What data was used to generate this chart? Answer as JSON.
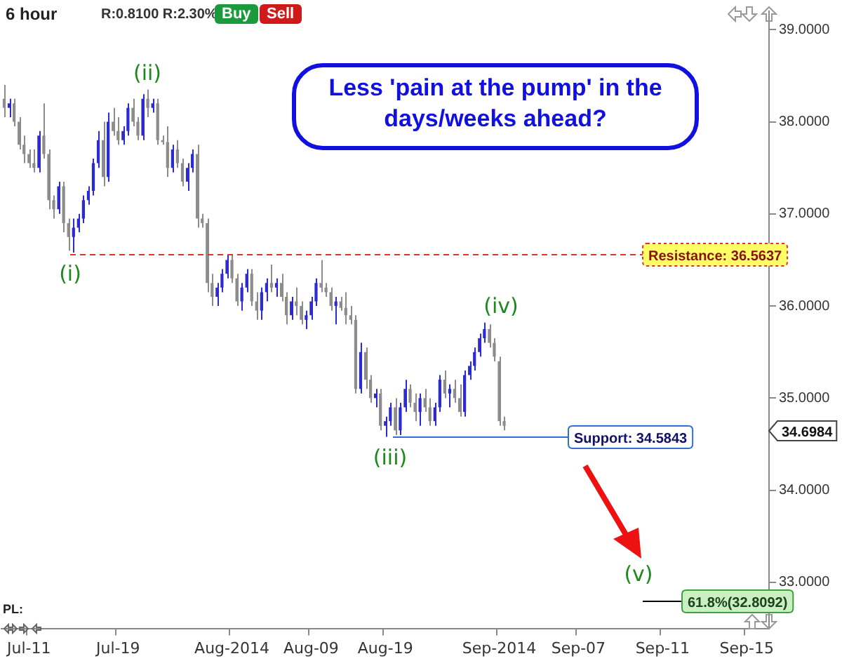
{
  "chart_data": {
    "type": "candlestick",
    "title": "6 hour",
    "categories": [
      null,
      null,
      null,
      null,
      null,
      "Jul-11",
      null,
      null,
      null,
      null,
      null,
      null,
      null,
      null,
      null,
      null,
      null,
      null,
      null,
      null,
      null,
      null,
      null,
      "Jul-19",
      null,
      null,
      null,
      null,
      null,
      null,
      null,
      null,
      null,
      null,
      null,
      null,
      null,
      null,
      null,
      null,
      null,
      null,
      null,
      null,
      null,
      null,
      "Aug-2014",
      null,
      null,
      null,
      null,
      null,
      null,
      null,
      null,
      null,
      null,
      null,
      null,
      null,
      null,
      null,
      "Aug-09",
      null,
      null,
      null,
      null,
      null,
      null,
      null,
      null,
      null,
      null,
      null,
      null,
      null,
      null,
      "Aug-19",
      null,
      null,
      null,
      null,
      null,
      null,
      null,
      null,
      null,
      null,
      null,
      null,
      null,
      null,
      null,
      null,
      null,
      null,
      null,
      null,
      null,
      null,
      "Sep-2014",
      null,
      null,
      null,
      null,
      null,
      null,
      null,
      null,
      null,
      null,
      null,
      null,
      null,
      null,
      null,
      "Sep-07",
      null,
      null,
      null,
      null,
      null,
      null,
      null,
      null,
      null,
      null,
      null,
      null,
      null,
      null,
      null,
      null,
      "Sep-11",
      null,
      null,
      null,
      null,
      null,
      null,
      null,
      null,
      null,
      null,
      null,
      null,
      null,
      null,
      null,
      null,
      "Sep-15",
      null,
      null,
      null,
      null
    ],
    "ohlc": [
      [
        38.25,
        38.4,
        38.05,
        38.15
      ],
      [
        38.15,
        38.25,
        38.05,
        38.2
      ],
      [
        38.2,
        38.25,
        37.95,
        38.0
      ],
      [
        38.0,
        38.05,
        37.7,
        37.75
      ],
      [
        37.75,
        37.85,
        37.55,
        37.65
      ],
      [
        37.65,
        37.7,
        37.5,
        37.55
      ],
      [
        37.55,
        37.7,
        37.45,
        37.5
      ],
      [
        37.5,
        37.9,
        37.45,
        37.85
      ],
      [
        37.85,
        38.2,
        37.6,
        37.65
      ],
      [
        37.65,
        37.7,
        37.05,
        37.15
      ],
      [
        37.15,
        37.2,
        36.95,
        37.05
      ],
      [
        37.05,
        37.35,
        37.0,
        37.3
      ],
      [
        37.3,
        37.35,
        36.8,
        36.9
      ],
      [
        36.9,
        36.95,
        36.6,
        36.75
      ],
      [
        36.75,
        36.95,
        36.58,
        36.85
      ],
      [
        36.85,
        37.0,
        36.8,
        36.95
      ],
      [
        36.95,
        37.2,
        36.9,
        37.15
      ],
      [
        37.15,
        37.3,
        37.1,
        37.25
      ],
      [
        37.25,
        37.6,
        37.2,
        37.55
      ],
      [
        37.55,
        37.9,
        37.5,
        37.8
      ],
      [
        37.8,
        38.0,
        37.3,
        37.4
      ],
      [
        37.4,
        38.1,
        37.35,
        38.0
      ],
      [
        38.0,
        38.15,
        37.85,
        37.9
      ],
      [
        37.9,
        38.05,
        37.75,
        37.8
      ],
      [
        37.8,
        37.95,
        37.75,
        37.9
      ],
      [
        37.9,
        38.2,
        37.85,
        38.15
      ],
      [
        38.15,
        38.25,
        37.95,
        38.0
      ],
      [
        38.0,
        38.05,
        37.8,
        37.85
      ],
      [
        37.85,
        38.3,
        37.8,
        38.25
      ],
      [
        38.25,
        38.35,
        38.05,
        38.15
      ],
      [
        38.15,
        38.25,
        38.1,
        38.2
      ],
      [
        38.2,
        38.25,
        37.75,
        37.8
      ],
      [
        37.8,
        37.85,
        37.75,
        37.78
      ],
      [
        37.78,
        37.95,
        37.4,
        37.5
      ],
      [
        37.5,
        37.75,
        37.45,
        37.7
      ],
      [
        37.7,
        37.8,
        37.5,
        37.55
      ],
      [
        37.55,
        37.6,
        37.3,
        37.35
      ],
      [
        37.35,
        37.55,
        37.25,
        37.5
      ],
      [
        37.5,
        37.7,
        37.45,
        37.65
      ],
      [
        37.65,
        37.75,
        36.85,
        36.95
      ],
      [
        36.95,
        37.0,
        36.85,
        36.9
      ],
      [
        36.9,
        36.95,
        36.15,
        36.25
      ],
      [
        36.25,
        36.35,
        36.0,
        36.1
      ],
      [
        36.1,
        36.25,
        36.0,
        36.2
      ],
      [
        36.2,
        36.4,
        36.15,
        36.35
      ],
      [
        36.35,
        36.55,
        36.3,
        36.5
      ],
      [
        36.5,
        36.55,
        36.25,
        36.3
      ],
      [
        36.3,
        36.35,
        36.0,
        36.05
      ],
      [
        36.05,
        36.25,
        35.95,
        36.2
      ],
      [
        36.2,
        36.4,
        36.15,
        36.35
      ],
      [
        36.35,
        36.4,
        36.0,
        36.05
      ],
      [
        36.05,
        36.15,
        35.85,
        35.95
      ],
      [
        35.95,
        36.2,
        35.85,
        36.15
      ],
      [
        36.15,
        36.3,
        36.05,
        36.25
      ],
      [
        36.25,
        36.45,
        36.15,
        36.2
      ],
      [
        36.2,
        36.3,
        36.1,
        36.25
      ],
      [
        36.25,
        36.35,
        36.05,
        36.1
      ],
      [
        36.1,
        36.15,
        35.8,
        35.9
      ],
      [
        35.9,
        36.1,
        35.85,
        36.05
      ],
      [
        36.05,
        36.2,
        35.9,
        36.0
      ],
      [
        36.0,
        36.05,
        35.8,
        35.85
      ],
      [
        35.85,
        35.95,
        35.75,
        35.9
      ],
      [
        35.9,
        36.1,
        35.85,
        36.05
      ],
      [
        36.05,
        36.3,
        36.0,
        36.25
      ],
      [
        36.25,
        36.5,
        36.15,
        36.2
      ],
      [
        36.2,
        36.25,
        36.1,
        36.15
      ],
      [
        36.15,
        36.2,
        35.95,
        36.0
      ],
      [
        36.0,
        36.1,
        35.8,
        36.05
      ],
      [
        36.05,
        36.1,
        35.95,
        35.98
      ],
      [
        35.98,
        36.15,
        35.8,
        35.9
      ],
      [
        35.9,
        36.0,
        35.8,
        35.85
      ],
      [
        35.85,
        35.9,
        35.05,
        35.1
      ],
      [
        35.1,
        35.6,
        35.05,
        35.5
      ],
      [
        35.5,
        35.55,
        35.1,
        35.2
      ],
      [
        35.2,
        35.25,
        34.95,
        35.0
      ],
      [
        35.0,
        35.1,
        34.9,
        35.05
      ],
      [
        35.05,
        35.1,
        34.65,
        34.7
      ],
      [
        34.7,
        34.8,
        34.58,
        34.75
      ],
      [
        34.75,
        34.95,
        34.7,
        34.9
      ],
      [
        34.9,
        35.0,
        34.6,
        34.65
      ],
      [
        34.65,
        34.95,
        34.6,
        34.9
      ],
      [
        34.9,
        35.2,
        34.85,
        35.1
      ],
      [
        35.1,
        35.15,
        34.9,
        34.95
      ],
      [
        34.95,
        35.05,
        34.75,
        34.85
      ],
      [
        34.85,
        35.05,
        34.7,
        35.0
      ],
      [
        35.0,
        35.1,
        34.85,
        34.9
      ],
      [
        34.9,
        35.0,
        34.7,
        34.75
      ],
      [
        34.75,
        34.95,
        34.7,
        34.9
      ],
      [
        34.9,
        35.25,
        34.85,
        35.2
      ],
      [
        35.2,
        35.3,
        35.0,
        35.05
      ],
      [
        35.05,
        35.15,
        34.9,
        35.1
      ],
      [
        35.1,
        35.2,
        34.95,
        35.0
      ],
      [
        35.0,
        35.15,
        34.8,
        34.85
      ],
      [
        34.85,
        35.3,
        34.8,
        35.25
      ],
      [
        35.25,
        35.4,
        35.2,
        35.35
      ],
      [
        35.35,
        35.55,
        35.3,
        35.5
      ],
      [
        35.5,
        35.7,
        35.45,
        35.65
      ],
      [
        35.65,
        35.82,
        35.6,
        35.75
      ],
      [
        35.75,
        35.8,
        35.55,
        35.6
      ],
      [
        35.6,
        35.65,
        35.4,
        35.45
      ],
      [
        35.4,
        35.45,
        34.7,
        34.75
      ],
      [
        34.75,
        34.8,
        34.65,
        34.7
      ],
      null,
      null,
      null,
      null,
      null,
      null,
      null,
      null,
      null,
      null,
      null,
      null,
      null,
      null,
      null,
      null,
      null,
      null,
      null,
      null,
      null,
      null,
      null,
      null,
      null,
      null,
      null,
      null,
      null,
      null,
      null,
      null,
      null,
      null,
      null,
      null,
      null,
      null,
      null,
      null,
      null,
      null,
      null,
      null,
      null,
      null,
      null,
      null,
      null,
      null,
      null,
      null,
      null
    ],
    "colors": [
      "#8c8c8c",
      "#2b2bd0",
      "#8c8c8c",
      "#8c8c8c",
      "#8c8c8c",
      "#8c8c8c",
      "#8c8c8c",
      "#2b2bd0",
      "#8c8c8c",
      "#8c8c8c",
      "#8c8c8c",
      "#2b2bd0",
      "#8c8c8c",
      "#8c8c8c",
      "#2b2bd0",
      "#2b2bd0",
      "#2b2bd0",
      "#2b2bd0",
      "#2b2bd0",
      "#2b2bd0",
      "#8c8c8c",
      "#2b2bd0",
      "#8c8c8c",
      "#8c8c8c",
      "#2b2bd0",
      "#2b2bd0",
      "#8c8c8c",
      "#8c8c8c",
      "#2b2bd0",
      "#8c8c8c",
      "#2b2bd0",
      "#8c8c8c",
      "#8c8c8c",
      "#8c8c8c",
      "#2b2bd0",
      "#8c8c8c",
      "#8c8c8c",
      "#2b2bd0",
      "#2b2bd0",
      "#8c8c8c",
      "#8c8c8c",
      "#8c8c8c",
      "#8c8c8c",
      "#2b2bd0",
      "#2b2bd0",
      "#2b2bd0",
      "#8c8c8c",
      "#8c8c8c",
      "#2b2bd0",
      "#2b2bd0",
      "#8c8c8c",
      "#8c8c8c",
      "#2b2bd0",
      "#2b2bd0",
      "#8c8c8c",
      "#2b2bd0",
      "#8c8c8c",
      "#8c8c8c",
      "#2b2bd0",
      "#8c8c8c",
      "#8c8c8c",
      "#2b2bd0",
      "#2b2bd0",
      "#2b2bd0",
      "#8c8c8c",
      "#8c8c8c",
      "#8c8c8c",
      "#2b2bd0",
      "#8c8c8c",
      "#8c8c8c",
      "#8c8c8c",
      "#8c8c8c",
      "#2b2bd0",
      "#8c8c8c",
      "#8c8c8c",
      "#2b2bd0",
      "#8c8c8c",
      "#2b2bd0",
      "#2b2bd0",
      "#8c8c8c",
      "#2b2bd0",
      "#2b2bd0",
      "#8c8c8c",
      "#8c8c8c",
      "#2b2bd0",
      "#8c8c8c",
      "#8c8c8c",
      "#2b2bd0",
      "#2b2bd0",
      "#8c8c8c",
      "#2b2bd0",
      "#8c8c8c",
      "#8c8c8c",
      "#2b2bd0",
      "#2b2bd0",
      "#2b2bd0",
      "#2b2bd0",
      "#2b2bd0",
      "#8c8c8c",
      "#8c8c8c",
      "#8c8c8c",
      "#8c8c8c",
      null,
      null,
      null,
      null,
      null,
      null,
      null,
      null,
      null,
      null,
      null,
      null,
      null,
      null,
      null,
      null,
      null,
      null,
      null,
      null,
      null,
      null,
      null,
      null,
      null,
      null,
      null,
      null,
      null,
      null,
      null,
      null,
      null,
      null,
      null,
      null,
      null,
      null,
      null,
      null,
      null,
      null,
      null,
      null,
      null,
      null,
      null,
      null,
      null,
      null,
      null,
      null,
      null
    ],
    "ylim": [
      32.5,
      39.2
    ],
    "yticks": [
      {
        "value": 33,
        "label": "33.0000"
      },
      {
        "value": 34,
        "label": "34.0000"
      },
      {
        "value": 35,
        "label": "35.0000"
      },
      {
        "value": 36,
        "label": "36.0000"
      },
      {
        "value": 37,
        "label": "37.0000"
      },
      {
        "value": 38,
        "label": "38.0000"
      },
      {
        "value": 39,
        "label": "39.0000"
      }
    ],
    "grid": false,
    "legend": false,
    "ref_lines": [
      {
        "axis": "y",
        "value": 36.5637,
        "label": "Resistance: 36.5637",
        "color": "#e03030",
        "line_style": "dashed"
      },
      {
        "axis": "y",
        "value": 34.5843,
        "label": "Support: 34.5843",
        "color": "#3070d0",
        "line_style": "solid"
      },
      {
        "axis": "y",
        "value": 32.8092,
        "label": "61.8%(32.8092)",
        "color": "#000000",
        "line_style": "solid"
      }
    ],
    "annotations": [
      "R:0.8100 R:2.30%",
      "Buy",
      "Sell",
      "Less 'pain at the pump' in the days/weeks ahead?",
      "(i)",
      "(ii)",
      "(iii)",
      "(iv)",
      "(v)",
      "34.6984",
      "PL:"
    ]
  }
}
